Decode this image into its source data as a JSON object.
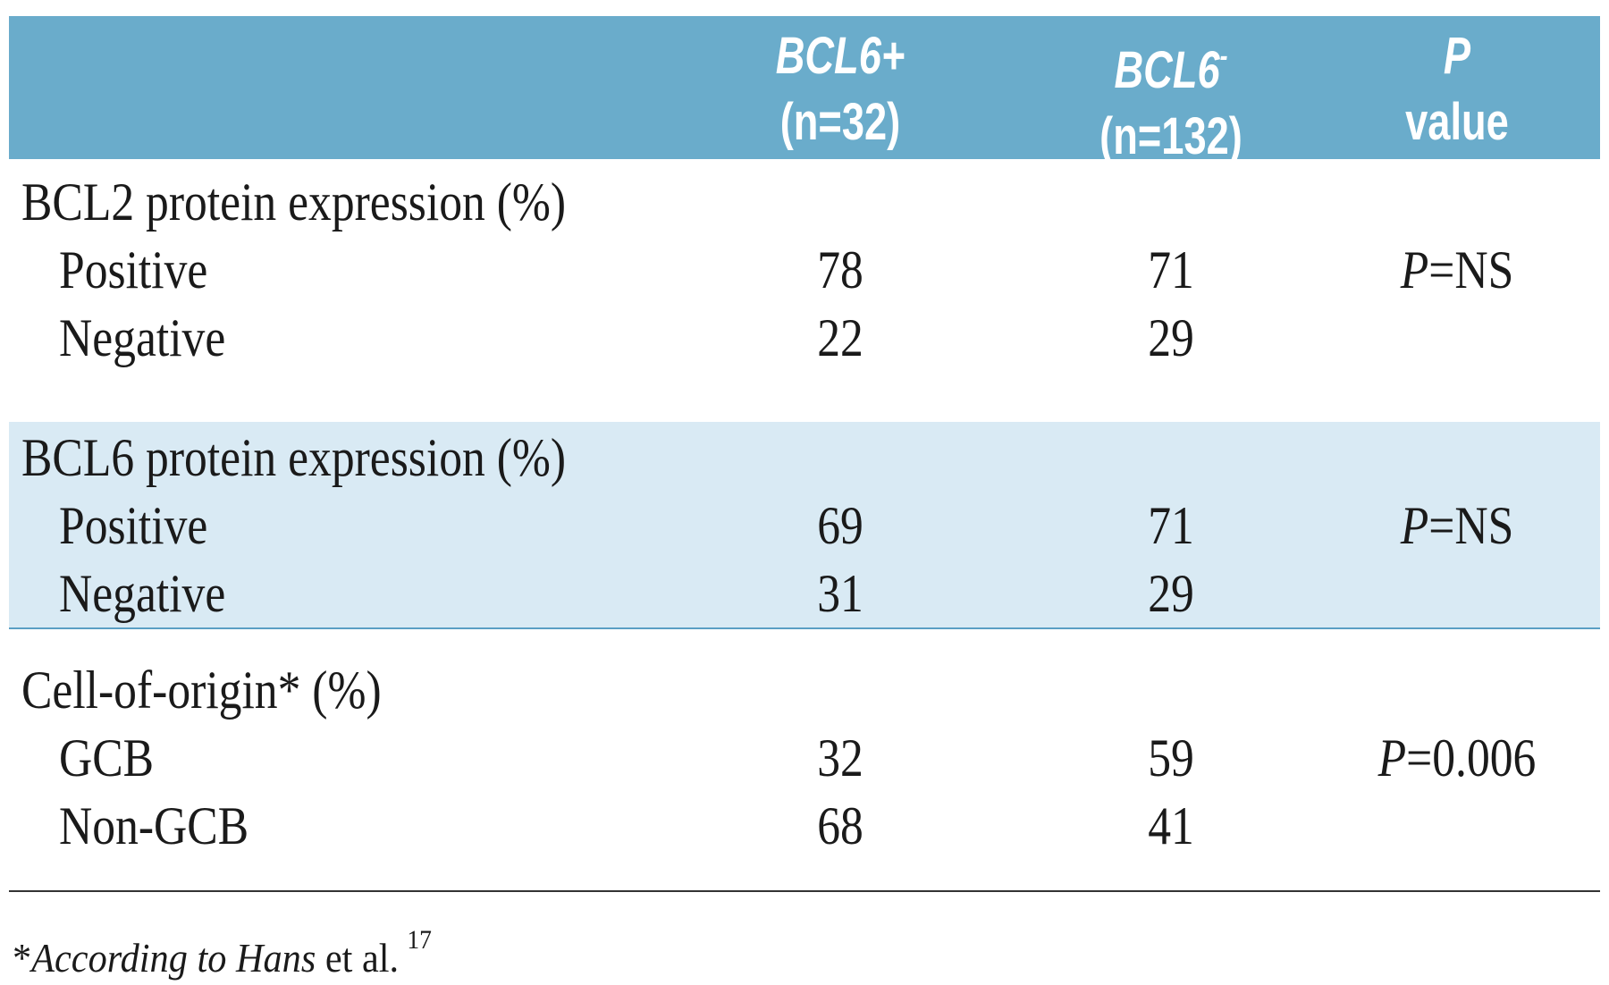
{
  "header": {
    "col_bcl6_pos": {
      "name": "BCL6+",
      "n": "(n=32)"
    },
    "col_bcl6_neg": {
      "name": "BCL6",
      "sup": "-",
      "n": "(n=132)"
    },
    "col_p": {
      "name": "P",
      "sub": "value"
    }
  },
  "sections": [
    {
      "title": "BCL2 protein expression (%)",
      "rows": [
        {
          "label": "Positive",
          "a": "78",
          "b": "71",
          "p_italic": "P",
          "p_rest": "=NS"
        },
        {
          "label": "Negative",
          "a": "22",
          "b": "29",
          "p_italic": "",
          "p_rest": ""
        }
      ]
    },
    {
      "title": "BCL6 protein expression (%)",
      "rows": [
        {
          "label": "Positive",
          "a": "69",
          "b": "71",
          "p_italic": "P",
          "p_rest": "=NS"
        },
        {
          "label": "Negative",
          "a": "31",
          "b": "29",
          "p_italic": "",
          "p_rest": ""
        }
      ]
    },
    {
      "title": "Cell-of-origin* (%)",
      "rows": [
        {
          "label": "GCB",
          "a": "32",
          "b": "59",
          "p_italic": "P",
          "p_rest": "=0.006"
        },
        {
          "label": "Non-GCB",
          "a": "68",
          "b": "41",
          "p_italic": "",
          "p_rest": ""
        }
      ]
    }
  ],
  "footnote": {
    "star": "*",
    "italic": "According to Hans",
    "rest": " et al.",
    "ref": "17"
  },
  "colors": {
    "header_bg": "#6aaccb",
    "shaded_bg": "#d9eaf4",
    "header_text": "#ffffff"
  }
}
